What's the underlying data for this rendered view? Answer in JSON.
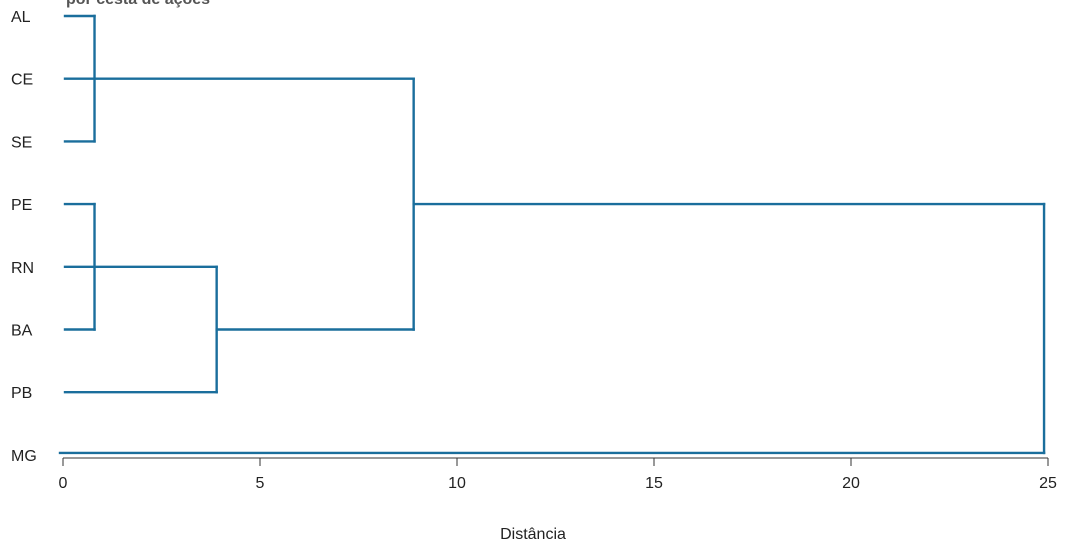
{
  "chart_data": {
    "type": "dendrogram",
    "title": "por cesta de ações",
    "xlabel": "Distância",
    "xlim": [
      0,
      25
    ],
    "xticks": [
      0,
      5,
      10,
      15,
      20,
      25
    ],
    "leaves": [
      "AL",
      "CE",
      "SE",
      "PE",
      "RN",
      "BA",
      "PB",
      "MG"
    ],
    "merges": [
      {
        "leaves": [
          "AL",
          "SE"
        ],
        "distance": 0.8
      },
      {
        "leaves": [
          "CE",
          "AL",
          "SE"
        ],
        "distance": 0.8
      },
      {
        "leaves": [
          "PE",
          "BA"
        ],
        "distance": 0.8
      },
      {
        "leaves": [
          "RN",
          "PE",
          "BA"
        ],
        "distance": 0.8
      },
      {
        "leaves": [
          "PB",
          "RN",
          "PE",
          "BA"
        ],
        "distance": 3.9
      },
      {
        "leaves": [
          "AL",
          "CE",
          "SE",
          "PE",
          "RN",
          "BA",
          "PB"
        ],
        "distance": 8.9
      },
      {
        "leaves": [
          "AL",
          "CE",
          "SE",
          "PE",
          "RN",
          "BA",
          "PB",
          "MG"
        ],
        "distance": 24.9
      }
    ],
    "line_color": "#1a6e9c",
    "grid": false
  }
}
